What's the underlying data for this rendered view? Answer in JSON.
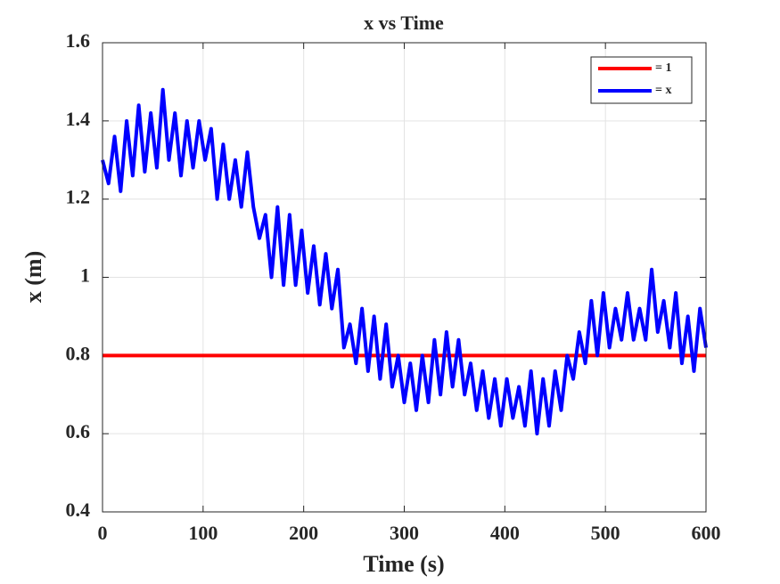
{
  "chart_data": {
    "type": "line",
    "title": "x vs Time",
    "x_label": "Time (s)",
    "y_label": "x (m)",
    "xlim": [
      0,
      600
    ],
    "xticks": [
      0,
      100,
      200,
      300,
      400,
      500,
      600
    ],
    "ylim": [
      0.4,
      1.6
    ],
    "yticks": [
      0.4,
      0.6,
      0.8,
      1,
      1.2,
      1.4,
      1.6
    ],
    "grid": true,
    "legend": "upper right",
    "series": [
      {
        "name": "= 1",
        "color": "#ff0000",
        "x": [
          0,
          600
        ],
        "values": [
          0.8,
          0.8
        ]
      },
      {
        "name": "= x",
        "color": "#0000ff",
        "x": [
          0,
          6,
          12,
          18,
          24,
          30,
          36,
          42,
          48,
          54,
          60,
          66,
          72,
          78,
          84,
          90,
          96,
          102,
          108,
          114,
          120,
          126,
          132,
          138,
          144,
          150,
          156,
          162,
          168,
          174,
          180,
          186,
          192,
          198,
          204,
          210,
          216,
          222,
          228,
          234,
          240,
          246,
          252,
          258,
          264,
          270,
          276,
          282,
          288,
          294,
          300,
          306,
          312,
          318,
          324,
          330,
          336,
          342,
          348,
          354,
          360,
          366,
          372,
          378,
          384,
          390,
          396,
          402,
          408,
          414,
          420,
          426,
          432,
          438,
          444,
          450,
          456,
          462,
          468,
          474,
          480,
          486,
          492,
          498,
          504,
          510,
          516,
          522,
          528,
          534,
          540,
          546,
          552,
          558,
          564,
          570,
          576,
          582,
          588,
          594,
          600
        ],
        "values": [
          1.3,
          1.24,
          1.36,
          1.22,
          1.4,
          1.26,
          1.44,
          1.27,
          1.42,
          1.28,
          1.48,
          1.3,
          1.42,
          1.26,
          1.4,
          1.28,
          1.4,
          1.3,
          1.38,
          1.2,
          1.34,
          1.2,
          1.3,
          1.18,
          1.32,
          1.18,
          1.1,
          1.16,
          1.0,
          1.18,
          0.98,
          1.16,
          0.98,
          1.12,
          0.96,
          1.08,
          0.93,
          1.06,
          0.92,
          1.02,
          0.82,
          0.88,
          0.78,
          0.92,
          0.76,
          0.9,
          0.74,
          0.88,
          0.72,
          0.8,
          0.68,
          0.78,
          0.66,
          0.8,
          0.68,
          0.84,
          0.7,
          0.86,
          0.72,
          0.84,
          0.7,
          0.78,
          0.66,
          0.76,
          0.64,
          0.74,
          0.62,
          0.74,
          0.64,
          0.72,
          0.62,
          0.76,
          0.6,
          0.74,
          0.62,
          0.76,
          0.66,
          0.8,
          0.74,
          0.86,
          0.78,
          0.94,
          0.8,
          0.96,
          0.82,
          0.92,
          0.84,
          0.96,
          0.84,
          0.92,
          0.84,
          1.02,
          0.86,
          0.94,
          0.82,
          0.96,
          0.78,
          0.9,
          0.76,
          0.92,
          0.82
        ]
      }
    ]
  }
}
